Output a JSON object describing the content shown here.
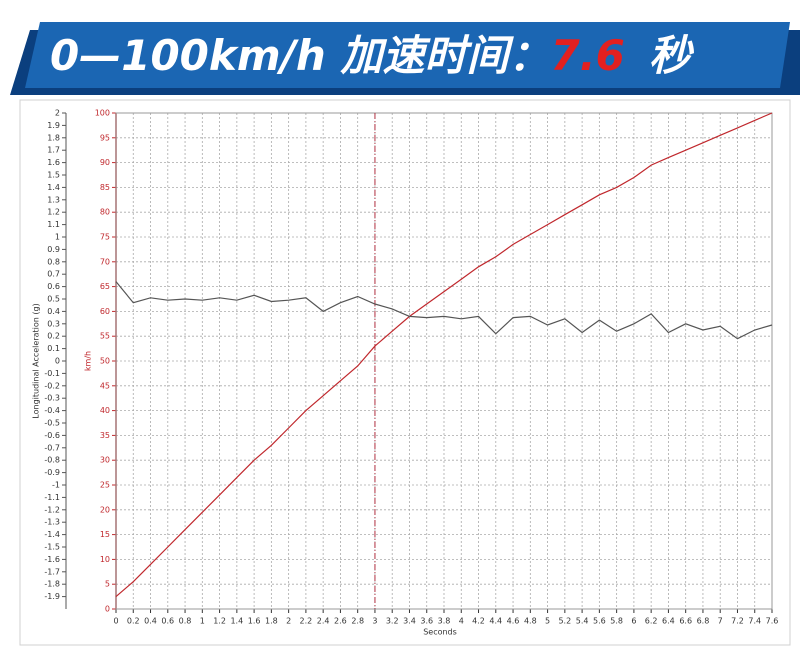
{
  "chart_data": {
    "type": "line",
    "title": "0—100km/h 加速时间：",
    "title_highlight": "7.6",
    "title_suffix": "秒",
    "xlabel": "Seconds",
    "ylabel": "Longitudinal Acceleration (g)",
    "y2label": "km/h",
    "x": [
      0,
      0.2,
      0.4,
      0.6,
      0.8,
      1,
      1.2,
      1.4,
      1.6,
      1.8,
      2,
      2.2,
      2.4,
      2.6,
      2.8,
      3,
      3.2,
      3.4,
      3.6,
      3.8,
      4,
      4.2,
      4.4,
      4.6,
      4.8,
      5,
      5.2,
      5.4,
      5.6,
      5.8,
      6,
      6.2,
      6.4,
      6.6,
      6.8,
      7,
      7.2,
      7.4,
      7.6
    ],
    "series": [
      {
        "name": "km/h",
        "color": "#c0282d",
        "axis": "y2",
        "values": [
          2.5,
          5.5,
          9,
          12.5,
          16,
          19.5,
          23,
          26.5,
          30,
          33,
          36.5,
          40,
          43,
          46,
          49,
          53,
          56,
          59,
          61.5,
          64,
          66.5,
          69,
          71,
          73.5,
          75.5,
          77.5,
          79.5,
          81.5,
          83.5,
          85,
          87,
          89.5,
          91,
          92.5,
          94,
          95.5,
          97,
          98.5,
          100
        ]
      },
      {
        "name": "Longitudinal Acceleration (g)",
        "color": "#555555",
        "values": [
          0.64,
          0.47,
          0.51,
          0.49,
          0.5,
          0.49,
          0.51,
          0.49,
          0.53,
          0.48,
          0.49,
          0.51,
          0.4,
          0.47,
          0.52,
          0.46,
          0.42,
          0.36,
          0.35,
          0.36,
          0.34,
          0.36,
          0.22,
          0.35,
          0.36,
          0.29,
          0.34,
          0.23,
          0.33,
          0.24,
          0.3,
          0.38,
          0.23,
          0.3,
          0.25,
          0.28,
          0.18,
          0.25,
          0.29
        ]
      }
    ],
    "xlim": [
      0,
      7.6
    ],
    "xticks": [
      0,
      0.2,
      0.4,
      0.6,
      0.8,
      1,
      1.2,
      1.4,
      1.6,
      1.8,
      2,
      2.2,
      2.4,
      2.6,
      2.8,
      3,
      3.2,
      3.4,
      3.6,
      3.8,
      4,
      4.2,
      4.4,
      4.6,
      4.8,
      5,
      5.2,
      5.4,
      5.6,
      5.8,
      6,
      6.2,
      6.4,
      6.6,
      6.8,
      7,
      7.2,
      7.4,
      7.6
    ],
    "ylim": [
      -2,
      2
    ],
    "yticks": [
      -1.9,
      -1.8,
      -1.7,
      -1.6,
      -1.5,
      -1.4,
      -1.3,
      -1.2,
      -1.1,
      -1,
      -0.9,
      -0.8,
      -0.7,
      -0.6,
      -0.5,
      -0.4,
      -0.3,
      -0.2,
      -0.1,
      0,
      0.1,
      0.2,
      0.3,
      0.4,
      0.5,
      0.6,
      0.7,
      0.8,
      0.9,
      1,
      1.1,
      1.2,
      1.3,
      1.4,
      1.5,
      1.6,
      1.7,
      1.8,
      1.9,
      2
    ],
    "y2lim": [
      0,
      100
    ],
    "y2ticks": [
      0,
      5,
      10,
      15,
      20,
      25,
      30,
      35,
      40,
      45,
      50,
      55,
      60,
      65,
      70,
      75,
      80,
      85,
      90,
      95,
      100
    ],
    "vline": 3,
    "vline_color": "#b03040",
    "grid": true
  }
}
